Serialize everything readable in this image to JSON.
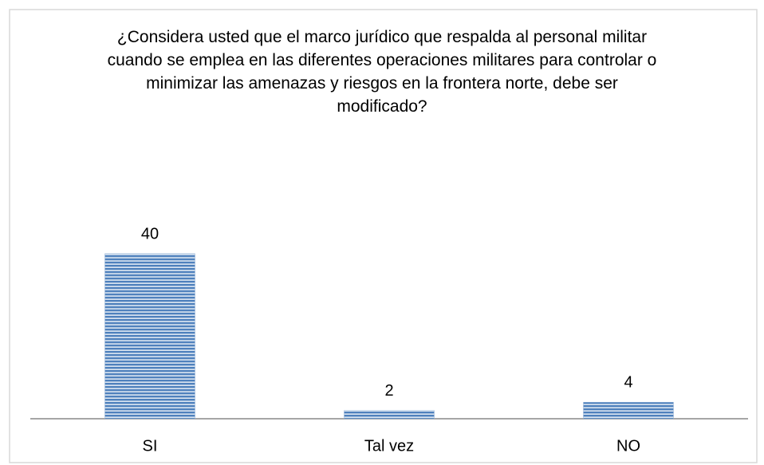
{
  "chart_data": {
    "type": "bar",
    "title": "¿Considera usted que el marco jurídico que respalda al personal militar cuando se emplea en las diferentes operaciones militares para controlar o minimizar las amenazas y riesgos en la frontera norte, debe ser modificado?",
    "categories": [
      "SI",
      "Tal vez",
      "NO"
    ],
    "values": [
      40,
      2,
      4
    ],
    "color": "#4f81bd"
  }
}
